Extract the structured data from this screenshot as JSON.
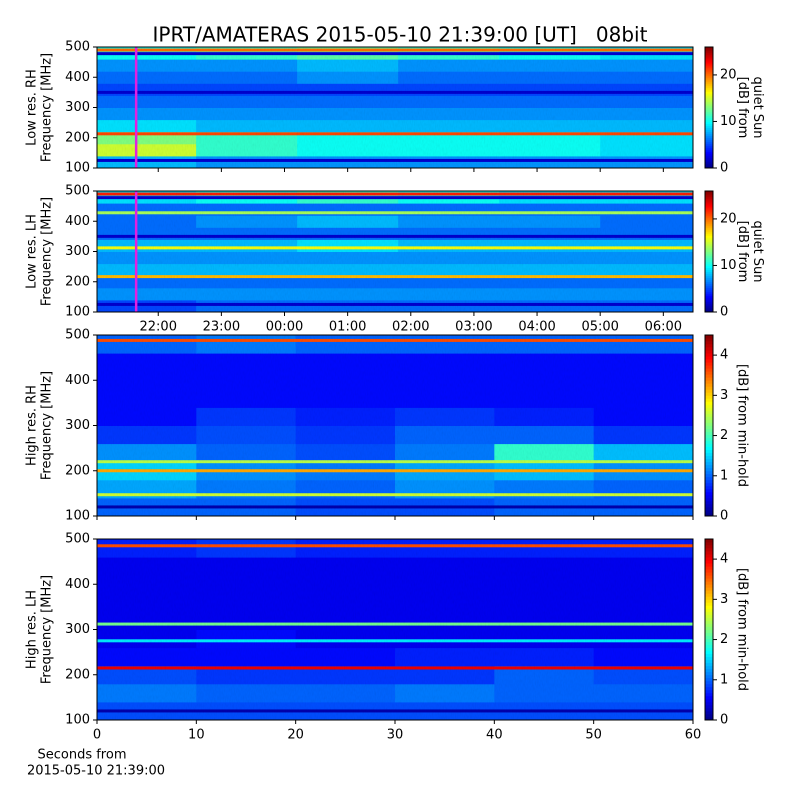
{
  "chart_data": [
    {
      "type": "heatmap",
      "title": "IPRT/AMATERAS 2015-05-10 21:39:00 [UT]   08bit",
      "ylabel": [
        "Low res. RH",
        "Frequency [MHz]"
      ],
      "colorbar_label": [
        "[dB] from",
        "quiet Sun"
      ],
      "colormap": "jet",
      "clim": [
        0,
        26
      ],
      "cticks": [
        0,
        10,
        20
      ],
      "xlim": [
        21.03,
        30.47
      ],
      "xticks": [
        22,
        23,
        24,
        25,
        26,
        27,
        28,
        29,
        30
      ],
      "ylim": [
        100,
        500
      ],
      "yticks": [
        100,
        200,
        300,
        400,
        500
      ],
      "marker_x": 21.65,
      "marker_color": "#e020e0",
      "xbins": [
        21.03,
        22.6,
        24.2,
        25.8,
        27.4,
        29,
        30.47
      ],
      "ybins": [
        100,
        140,
        180,
        220,
        260,
        300,
        340,
        380,
        420,
        460,
        500
      ],
      "z": [
        [
          8,
          7,
          7,
          7,
          7,
          7
        ],
        [
          15,
          11,
          10,
          10,
          10,
          9
        ],
        [
          13,
          11,
          10,
          10,
          10,
          9
        ],
        [
          9,
          8,
          8,
          8,
          8,
          8
        ],
        [
          7,
          7,
          7,
          7,
          7,
          7
        ],
        [
          6,
          6,
          6,
          6,
          6,
          6
        ],
        [
          5,
          5,
          5,
          5,
          5,
          5
        ],
        [
          6,
          6,
          7,
          6,
          6,
          6
        ],
        [
          7,
          7,
          8,
          7,
          7,
          7
        ],
        [
          10,
          11,
          12,
          11,
          10,
          9
        ]
      ],
      "lines": [
        {
          "y": 125,
          "value": 2
        },
        {
          "y": 213,
          "value": 21
        },
        {
          "y": 350,
          "value": 2
        },
        {
          "y": 478,
          "value": 2
        },
        {
          "y": 490,
          "value": 20
        }
      ]
    },
    {
      "type": "heatmap",
      "ylabel": [
        "Low res. LH",
        "Frequency [MHz]"
      ],
      "colorbar_label": [
        "[dB] from",
        "quiet Sun"
      ],
      "colormap": "jet",
      "clim": [
        0,
        26
      ],
      "cticks": [
        0,
        10,
        20
      ],
      "xlim": [
        21.03,
        30.47
      ],
      "xticks": [
        {
          "value": 22,
          "label": "22:00"
        },
        {
          "value": 23,
          "label": "23:00"
        },
        {
          "value": 24,
          "label": "00:00"
        },
        {
          "value": 25,
          "label": "01:00"
        },
        {
          "value": 26,
          "label": "02:00"
        },
        {
          "value": 27,
          "label": "03:00"
        },
        {
          "value": 28,
          "label": "04:00"
        },
        {
          "value": 29,
          "label": "05:00"
        },
        {
          "value": 30,
          "label": "06:00"
        }
      ],
      "ylim": [
        100,
        500
      ],
      "yticks": [
        100,
        200,
        300,
        400,
        500
      ],
      "marker_x": 21.65,
      "marker_color": "#e020e0",
      "xbins": [
        21.03,
        22.6,
        24.2,
        25.8,
        27.4,
        29,
        30.47
      ],
      "ybins": [
        100,
        140,
        180,
        220,
        260,
        300,
        340,
        380,
        420,
        460,
        500
      ],
      "z": [
        [
          5,
          6,
          6,
          6,
          6,
          6
        ],
        [
          7,
          7,
          7,
          7,
          7,
          7
        ],
        [
          6,
          6,
          6,
          6,
          6,
          6
        ],
        [
          8,
          8,
          8,
          8,
          8,
          8
        ],
        [
          7,
          7,
          7,
          7,
          7,
          7
        ],
        [
          8,
          8,
          9,
          8,
          8,
          8
        ],
        [
          6,
          6,
          6,
          6,
          6,
          6
        ],
        [
          6,
          7,
          8,
          7,
          7,
          6
        ],
        [
          6,
          6,
          6,
          6,
          6,
          6
        ],
        [
          9,
          10,
          11,
          10,
          9,
          9
        ]
      ],
      "lines": [
        {
          "y": 125,
          "value": 2
        },
        {
          "y": 217,
          "value": 18
        },
        {
          "y": 312,
          "value": 16
        },
        {
          "y": 350,
          "value": 2
        },
        {
          "y": 428,
          "value": 14
        },
        {
          "y": 478,
          "value": 2
        },
        {
          "y": 490,
          "value": 22
        }
      ]
    },
    {
      "type": "heatmap",
      "ylabel": [
        "High res. RH",
        "Frequency [MHz]"
      ],
      "colorbar_label": [
        "[dB] from min-hold"
      ],
      "colormap": "jet",
      "clim": [
        0,
        4.5
      ],
      "cticks": [
        0,
        1,
        2,
        3,
        4
      ],
      "xlim": [
        0,
        60
      ],
      "xticks": [
        0,
        10,
        20,
        30,
        40,
        50,
        60
      ],
      "ylim": [
        100,
        500
      ],
      "yticks": [
        100,
        200,
        300,
        400,
        500
      ],
      "xbins": [
        0,
        10,
        20,
        30,
        40,
        50,
        60
      ],
      "ybins": [
        100,
        140,
        180,
        220,
        260,
        300,
        340,
        380,
        420,
        460,
        500
      ],
      "z": [
        [
          1.0,
          1.0,
          0.9,
          0.9,
          1.0,
          1.0
        ],
        [
          1.3,
          1.1,
          1.0,
          1.2,
          1.1,
          1.0
        ],
        [
          1.5,
          1.2,
          1.1,
          1.3,
          1.4,
          1.2
        ],
        [
          1.2,
          1.0,
          0.9,
          1.1,
          1.9,
          1.4
        ],
        [
          0.8,
          0.9,
          0.8,
          1.0,
          1.0,
          0.8
        ],
        [
          0.6,
          0.8,
          0.7,
          0.8,
          0.7,
          0.6
        ],
        [
          0.6,
          0.6,
          0.6,
          0.6,
          0.6,
          0.6
        ],
        [
          0.6,
          0.6,
          0.6,
          0.6,
          0.6,
          0.6
        ],
        [
          0.6,
          0.6,
          0.6,
          0.6,
          0.6,
          0.6
        ],
        [
          1.0,
          1.1,
          1.0,
          1.0,
          1.0,
          1.0
        ]
      ],
      "lines": [
        {
          "y": 120,
          "value": 0.2
        },
        {
          "y": 147,
          "value": 2.6
        },
        {
          "y": 200,
          "value": 3.2
        },
        {
          "y": 220,
          "value": 2.5
        },
        {
          "y": 488,
          "value": 3.6
        }
      ]
    },
    {
      "type": "heatmap",
      "ylabel": [
        "High res. LH",
        "Frequency [MHz]"
      ],
      "colorbar_label": [
        "[dB] from min-hold"
      ],
      "xlabel": [
        "Seconds from",
        "2015-05-10 21:39:00"
      ],
      "colormap": "jet",
      "clim": [
        0,
        4.5
      ],
      "cticks": [
        0,
        1,
        2,
        3,
        4
      ],
      "xlim": [
        0,
        60
      ],
      "xticks": [
        0,
        10,
        20,
        30,
        40,
        50,
        60
      ],
      "ylim": [
        100,
        500
      ],
      "yticks": [
        100,
        200,
        300,
        400,
        500
      ],
      "xbins": [
        0,
        10,
        20,
        30,
        40,
        50,
        60
      ],
      "ybins": [
        100,
        140,
        180,
        220,
        260,
        300,
        340,
        380,
        420,
        460,
        500
      ],
      "z": [
        [
          0.9,
          0.9,
          0.9,
          0.9,
          0.9,
          0.9
        ],
        [
          1.1,
          1.0,
          1.0,
          1.1,
          1.0,
          1.0
        ],
        [
          0.9,
          0.8,
          0.8,
          0.8,
          1.0,
          0.9
        ],
        [
          0.6,
          0.6,
          0.6,
          0.7,
          0.7,
          0.6
        ],
        [
          0.5,
          0.6,
          0.5,
          0.5,
          0.5,
          0.5
        ],
        [
          0.5,
          0.5,
          0.5,
          0.5,
          0.5,
          0.5
        ],
        [
          0.5,
          0.5,
          0.5,
          0.5,
          0.5,
          0.5
        ],
        [
          0.5,
          0.5,
          0.5,
          0.5,
          0.5,
          0.5
        ],
        [
          0.5,
          0.5,
          0.5,
          0.5,
          0.5,
          0.5
        ],
        [
          0.7,
          0.8,
          0.7,
          0.7,
          0.7,
          0.7
        ]
      ],
      "lines": [
        {
          "y": 120,
          "value": 0.2
        },
        {
          "y": 215,
          "value": 4
        },
        {
          "y": 275,
          "value": 1.6
        },
        {
          "y": 312,
          "value": 2.2
        },
        {
          "y": 485,
          "value": 3.6
        }
      ]
    }
  ]
}
